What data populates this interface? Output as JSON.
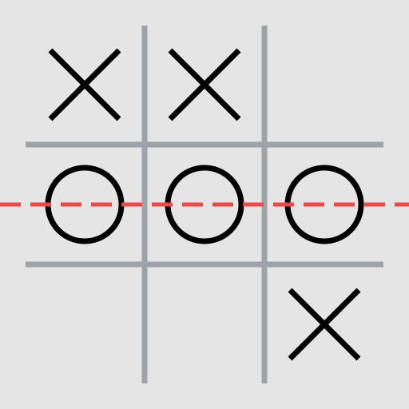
{
  "game": {
    "name": "tic-tac-toe",
    "board": [
      [
        "X",
        "X",
        ""
      ],
      [
        "O",
        "O",
        "O"
      ],
      [
        "",
        "",
        "X"
      ]
    ],
    "winner": "O",
    "winning_line": {
      "type": "row",
      "index": 1
    },
    "colors": {
      "background": "#e5e5e5",
      "grid": "#9ea3aa",
      "mark": "#000000",
      "win_line": "#e84a4a"
    }
  }
}
